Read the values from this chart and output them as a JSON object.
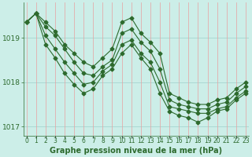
{
  "title": "Graphe pression niveau de la mer (hPa)",
  "background_color": "#cceee8",
  "line_color": "#2d6a2d",
  "grid_color_h": "#9ecfca",
  "grid_color_v": "#e8a0a0",
  "ylabel_ticks": [
    1017,
    1018,
    1019
  ],
  "x_hours": [
    0,
    1,
    2,
    3,
    4,
    5,
    6,
    7,
    8,
    9,
    10,
    11,
    12,
    13,
    14,
    15,
    16,
    17,
    18,
    19,
    20,
    21,
    22,
    23
  ],
  "line1": [
    1019.35,
    1019.55,
    1019.35,
    1019.15,
    1018.85,
    1018.65,
    1018.45,
    1018.35,
    1018.55,
    1018.75,
    1019.35,
    1019.45,
    1019.1,
    1018.9,
    1018.65,
    1017.75,
    1017.65,
    1017.55,
    1017.5,
    1017.5,
    1017.6,
    1017.65,
    1017.85,
    1018.0
  ],
  "line2": [
    1019.35,
    1019.55,
    1019.25,
    1019.05,
    1018.75,
    1018.45,
    1018.2,
    1018.15,
    1018.35,
    1018.5,
    1019.1,
    1019.2,
    1018.9,
    1018.7,
    1018.3,
    1017.6,
    1017.5,
    1017.45,
    1017.4,
    1017.4,
    1017.5,
    1017.55,
    1017.75,
    1017.9
  ],
  "line3": [
    1019.35,
    1019.55,
    1019.05,
    1018.75,
    1018.45,
    1018.2,
    1017.95,
    1018.0,
    1018.25,
    1018.4,
    1018.85,
    1018.95,
    1018.65,
    1018.45,
    1018.0,
    1017.45,
    1017.4,
    1017.35,
    1017.3,
    1017.3,
    1017.4,
    1017.45,
    1017.65,
    1017.8
  ],
  "line4": [
    1019.35,
    1019.55,
    1018.85,
    1018.55,
    1018.2,
    1017.95,
    1017.75,
    1017.85,
    1018.15,
    1018.3,
    1018.65,
    1018.85,
    1018.55,
    1018.3,
    1017.75,
    1017.35,
    1017.25,
    1017.2,
    1017.1,
    1017.2,
    1017.35,
    1017.4,
    1017.6,
    1017.75
  ],
  "ylim": [
    1016.8,
    1019.8
  ],
  "marker_size": 2.5,
  "line_width": 0.8,
  "xlabel_fontsize": 5.5,
  "ylabel_fontsize": 6.5,
  "title_fontsize": 7.0
}
